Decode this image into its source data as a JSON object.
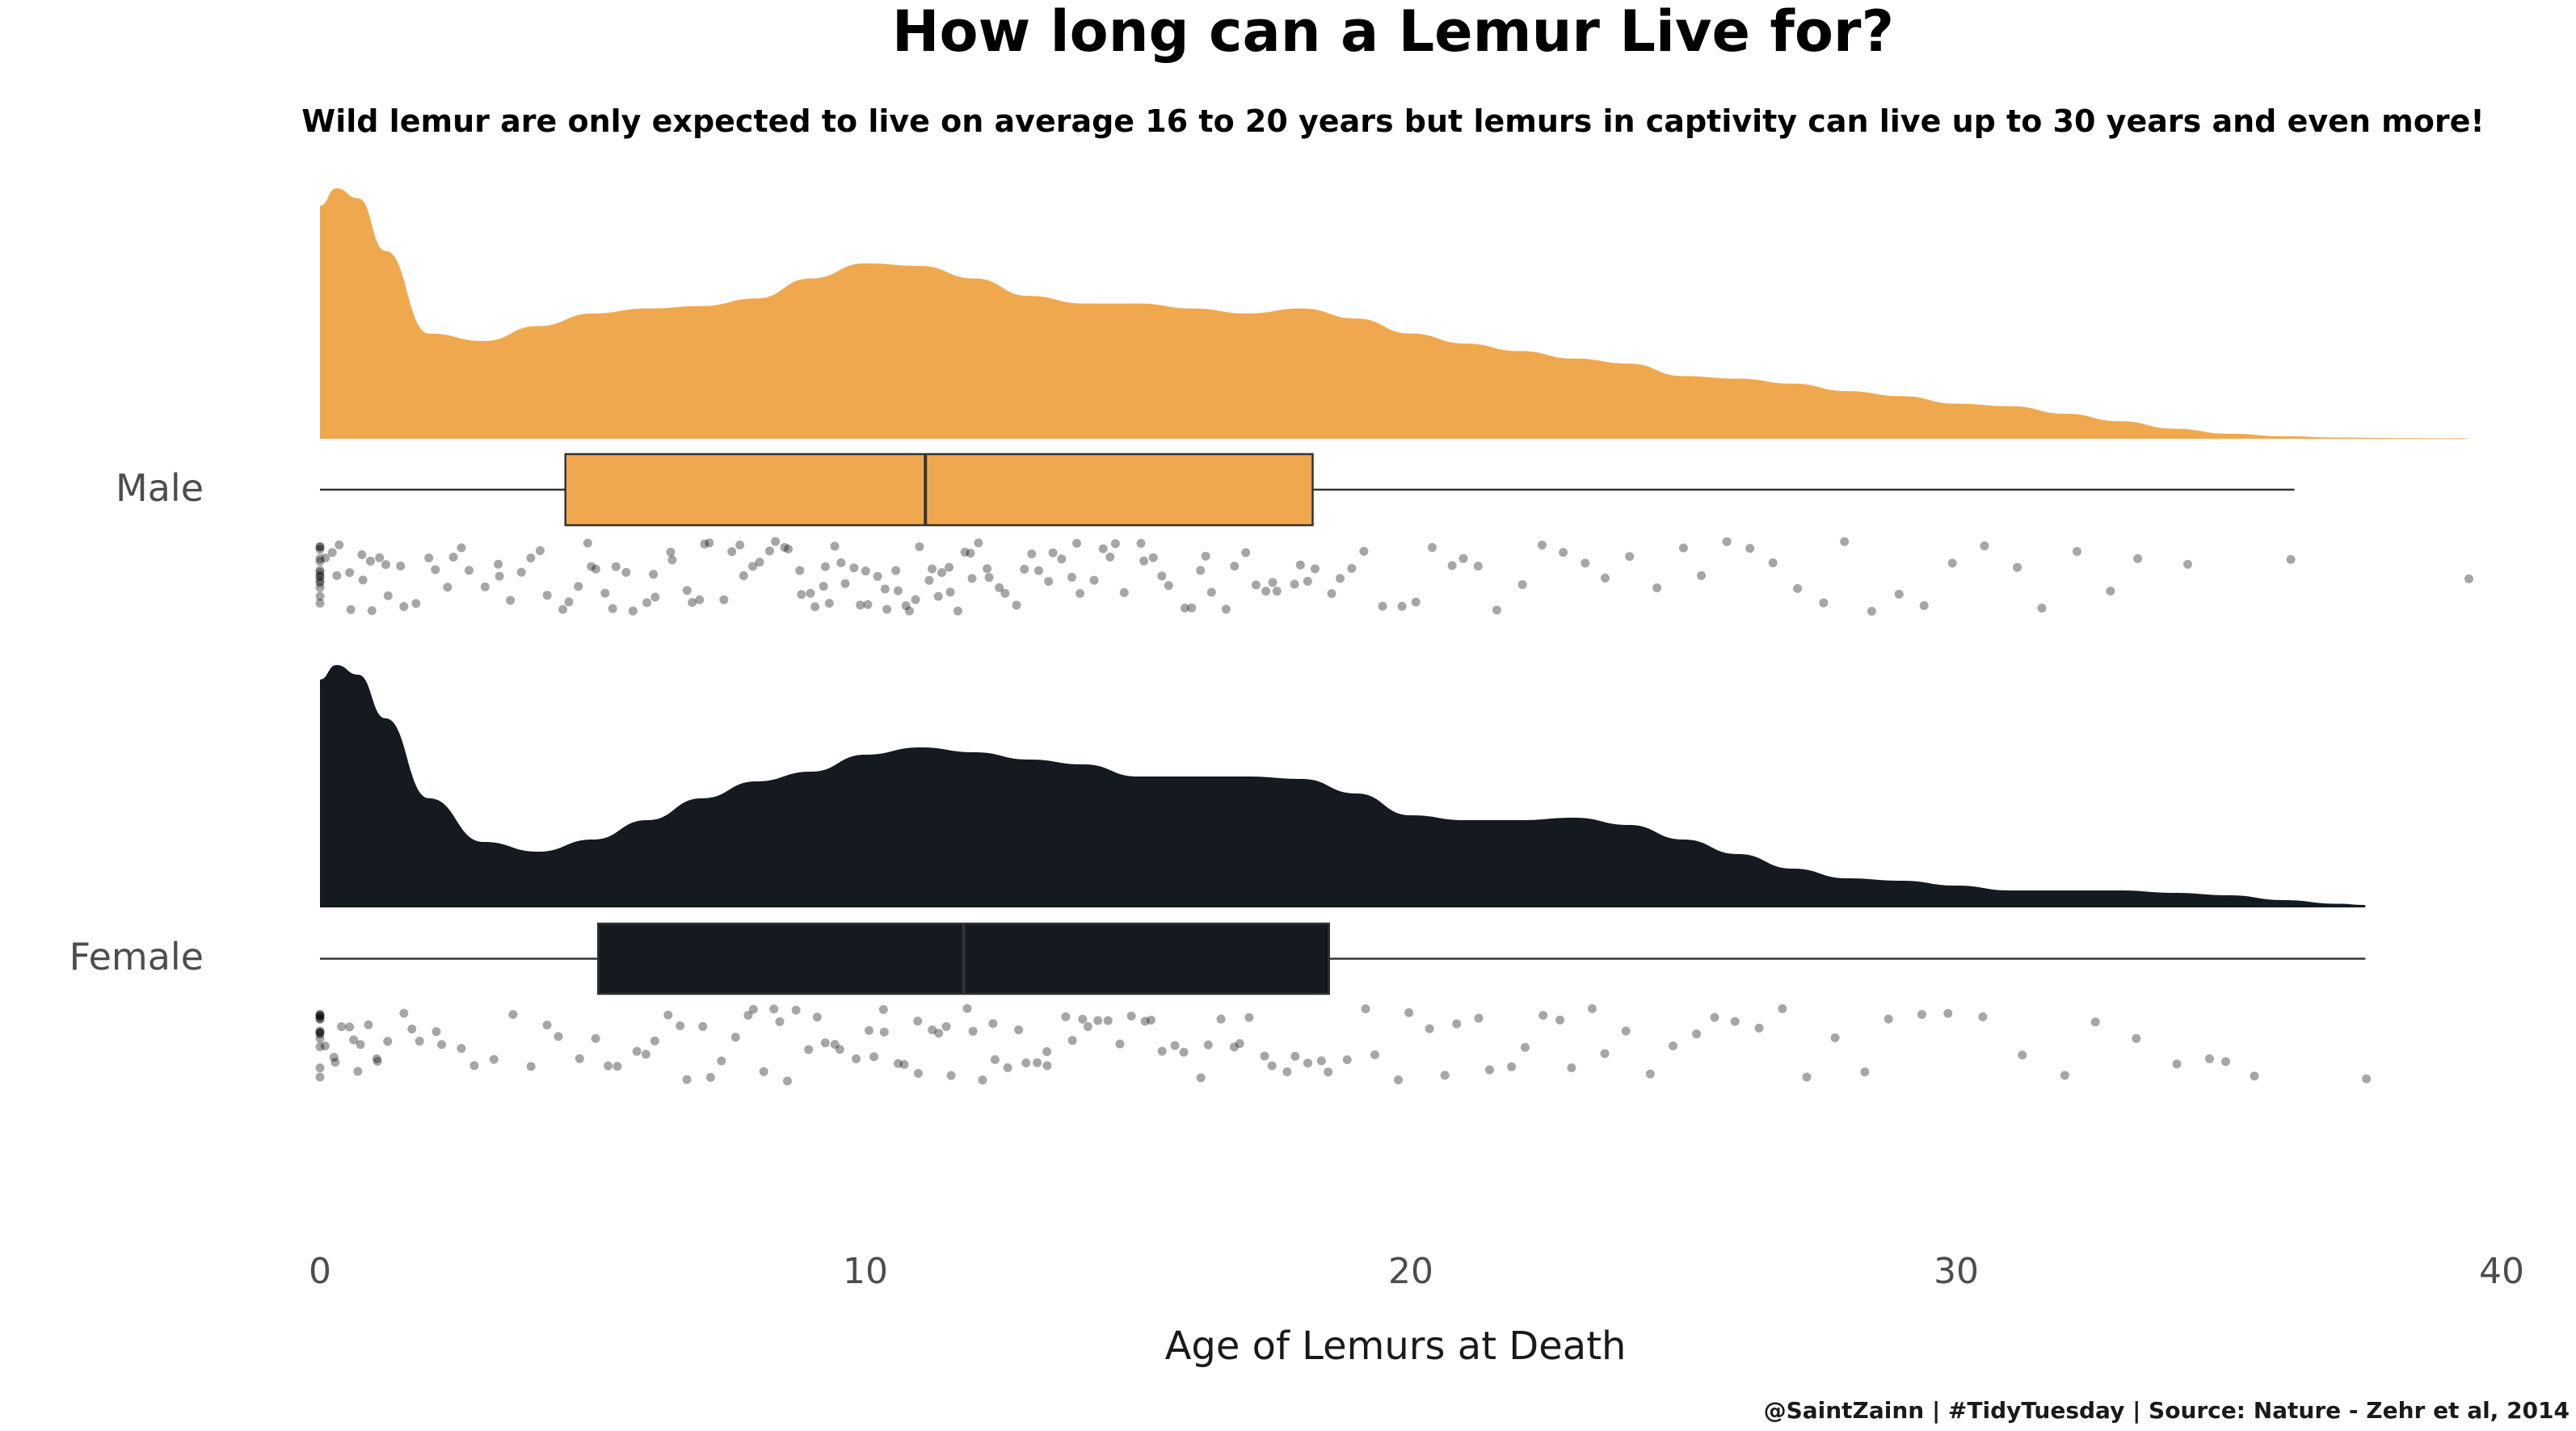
{
  "chart_data": {
    "type": "raincloud",
    "title": "How long can a Lemur Live for?",
    "subtitle": "Wild lemur are only expected to live on average 16 to 20 years but lemurs in captivity can live up to 30 years and even more!",
    "xlabel": "Age of Lemurs at Death",
    "ylabel": "",
    "xlim": [
      0,
      40
    ],
    "x_ticks": [
      0,
      10,
      20,
      30,
      40
    ],
    "x_tick_labels": [
      "0",
      "10",
      "20",
      "30",
      "40"
    ],
    "grid": false,
    "caption": "@SaintZainn | #TidyTuesday | Source: Nature - Zehr et al, 2014",
    "groups": [
      {
        "label": "Male",
        "color": "#F0A84E",
        "box": {
          "whisker_low": 0,
          "q1": 4.5,
          "median": 11.1,
          "q3": 18.2,
          "whisker_high": 36.2
        },
        "max_point": 39.4,
        "density": [
          [
            0,
            0.93
          ],
          [
            0.3,
            1.0
          ],
          [
            0.7,
            0.96
          ],
          [
            1.2,
            0.75
          ],
          [
            2,
            0.42
          ],
          [
            3,
            0.39
          ],
          [
            4,
            0.45
          ],
          [
            5,
            0.5
          ],
          [
            6,
            0.52
          ],
          [
            7,
            0.53
          ],
          [
            8,
            0.56
          ],
          [
            9,
            0.64
          ],
          [
            10,
            0.7
          ],
          [
            11,
            0.69
          ],
          [
            12,
            0.64
          ],
          [
            13,
            0.57
          ],
          [
            14,
            0.54
          ],
          [
            15,
            0.54
          ],
          [
            16,
            0.52
          ],
          [
            17,
            0.5
          ],
          [
            18,
            0.52
          ],
          [
            19,
            0.48
          ],
          [
            20,
            0.42
          ],
          [
            21,
            0.38
          ],
          [
            22,
            0.35
          ],
          [
            23,
            0.32
          ],
          [
            24,
            0.3
          ],
          [
            25,
            0.25
          ],
          [
            26,
            0.24
          ],
          [
            27,
            0.22
          ],
          [
            28,
            0.19
          ],
          [
            29,
            0.17
          ],
          [
            30,
            0.14
          ],
          [
            31,
            0.13
          ],
          [
            32,
            0.1
          ],
          [
            33,
            0.07
          ],
          [
            34,
            0.04
          ],
          [
            35,
            0.02
          ],
          [
            36,
            0.01
          ],
          [
            37,
            0.005
          ],
          [
            38,
            0.003
          ],
          [
            39.4,
            0.002
          ]
        ],
        "points": [
          0,
          0,
          0,
          0,
          0,
          0,
          0,
          0,
          0,
          0,
          0,
          0,
          0,
          0,
          0.1,
          0.2,
          0.3,
          0.4,
          0.5,
          0.6,
          0.7,
          0.8,
          0.9,
          1.0,
          1.1,
          1.2,
          1.3,
          1.5,
          1.6,
          1.8,
          2.0,
          2.1,
          2.3,
          2.5,
          2.6,
          2.8,
          3.0,
          3.2,
          3.3,
          3.5,
          3.7,
          3.9,
          4.0,
          4.2,
          4.4,
          4.5,
          4.7,
          4.9,
          5.0,
          5.1,
          5.2,
          5.4,
          5.5,
          5.6,
          5.8,
          6.0,
          6.1,
          6.2,
          6.4,
          6.5,
          6.7,
          6.8,
          7.0,
          7.1,
          7.2,
          7.4,
          7.5,
          7.7,
          7.8,
          8.0,
          8.1,
          8.2,
          8.4,
          8.5,
          8.6,
          8.8,
          8.9,
          9.0,
          9.1,
          9.2,
          9.3,
          9.4,
          9.5,
          9.6,
          9.7,
          9.8,
          9.9,
          10.0,
          10.1,
          10.2,
          10.3,
          10.4,
          10.5,
          10.6,
          10.7,
          10.8,
          10.9,
          11.0,
          11.1,
          11.2,
          11.3,
          11.4,
          11.5,
          11.6,
          11.7,
          11.8,
          11.9,
          12.0,
          12.1,
          12.2,
          12.3,
          12.5,
          12.6,
          12.8,
          12.9,
          13.0,
          13.2,
          13.3,
          13.5,
          13.6,
          13.8,
          13.9,
          14.0,
          14.2,
          14.3,
          14.5,
          14.6,
          14.8,
          15.0,
          15.1,
          15.3,
          15.4,
          15.6,
          15.8,
          16.0,
          16.1,
          16.3,
          16.4,
          16.6,
          16.8,
          17.0,
          17.1,
          17.3,
          17.5,
          17.6,
          17.8,
          18.0,
          18.1,
          18.3,
          18.5,
          18.7,
          18.9,
          19.2,
          19.5,
          19.8,
          20.1,
          20.4,
          20.7,
          21.0,
          21.3,
          21.6,
          22.0,
          22.4,
          22.8,
          23.2,
          23.6,
          24.0,
          24.5,
          25.0,
          25.4,
          25.8,
          26.2,
          26.7,
          27.1,
          27.5,
          28.0,
          28.4,
          28.9,
          29.4,
          30.0,
          30.5,
          31.1,
          31.6,
          32.2,
          32.8,
          33.4,
          34.3,
          36.2,
          39.4
        ]
      },
      {
        "label": "Female",
        "color": "#151A21",
        "box": {
          "whisker_low": 0,
          "q1": 5.1,
          "median": 11.8,
          "q3": 18.5,
          "whisker_high": 37.5
        },
        "max_point": 37.5,
        "density": [
          [
            0,
            0.94
          ],
          [
            0.3,
            1.0
          ],
          [
            0.7,
            0.96
          ],
          [
            1.2,
            0.78
          ],
          [
            2,
            0.45
          ],
          [
            3,
            0.27
          ],
          [
            4,
            0.23
          ],
          [
            5,
            0.28
          ],
          [
            6,
            0.36
          ],
          [
            7,
            0.45
          ],
          [
            8,
            0.52
          ],
          [
            9,
            0.56
          ],
          [
            10,
            0.63
          ],
          [
            11,
            0.66
          ],
          [
            12,
            0.64
          ],
          [
            13,
            0.61
          ],
          [
            14,
            0.59
          ],
          [
            15,
            0.54
          ],
          [
            16,
            0.54
          ],
          [
            17,
            0.54
          ],
          [
            18,
            0.53
          ],
          [
            19,
            0.47
          ],
          [
            20,
            0.38
          ],
          [
            21,
            0.36
          ],
          [
            22,
            0.36
          ],
          [
            23,
            0.37
          ],
          [
            24,
            0.34
          ],
          [
            25,
            0.28
          ],
          [
            26,
            0.22
          ],
          [
            27,
            0.16
          ],
          [
            28,
            0.12
          ],
          [
            29,
            0.11
          ],
          [
            30,
            0.09
          ],
          [
            31,
            0.07
          ],
          [
            32,
            0.07
          ],
          [
            33,
            0.07
          ],
          [
            34,
            0.06
          ],
          [
            35,
            0.05
          ],
          [
            36,
            0.03
          ],
          [
            37,
            0.015
          ],
          [
            37.5,
            0.01
          ]
        ],
        "points": [
          0,
          0,
          0,
          0,
          0,
          0,
          0,
          0,
          0,
          0,
          0,
          0,
          0,
          0,
          0.1,
          0.2,
          0.3,
          0.4,
          0.5,
          0.6,
          0.7,
          0.8,
          0.9,
          1.0,
          1.1,
          1.3,
          1.5,
          1.7,
          1.9,
          2.1,
          2.3,
          2.6,
          2.9,
          3.2,
          3.5,
          3.8,
          4.1,
          4.4,
          4.7,
          5.0,
          5.3,
          5.5,
          5.8,
          6.0,
          6.2,
          6.4,
          6.6,
          6.8,
          7.0,
          7.2,
          7.4,
          7.6,
          7.8,
          8.0,
          8.1,
          8.3,
          8.5,
          8.6,
          8.8,
          9.0,
          9.1,
          9.3,
          9.5,
          9.6,
          9.8,
          10.0,
          10.1,
          10.3,
          10.4,
          10.6,
          10.7,
          10.9,
          11.0,
          11.2,
          11.3,
          11.5,
          11.6,
          11.8,
          12.0,
          12.1,
          12.3,
          12.4,
          12.6,
          12.8,
          12.9,
          13.1,
          13.3,
          13.4,
          13.6,
          13.8,
          14.0,
          14.1,
          14.3,
          14.5,
          14.7,
          14.9,
          15.1,
          15.3,
          15.5,
          15.7,
          15.9,
          16.1,
          16.3,
          16.5,
          16.7,
          16.9,
          17.1,
          17.3,
          17.5,
          17.7,
          17.9,
          18.1,
          18.3,
          18.5,
          18.8,
          19.1,
          19.4,
          19.7,
          20.0,
          20.3,
          20.6,
          20.9,
          21.2,
          21.5,
          21.8,
          22.1,
          22.4,
          22.7,
          23.0,
          23.3,
          23.6,
          24.0,
          24.4,
          24.8,
          25.2,
          25.6,
          26.0,
          26.4,
          26.8,
          27.3,
          27.8,
          28.3,
          28.8,
          29.3,
          29.8,
          30.5,
          31.2,
          32.0,
          32.6,
          33.3,
          34.0,
          34.6,
          35.0,
          35.5,
          37.5
        ]
      }
    ]
  }
}
